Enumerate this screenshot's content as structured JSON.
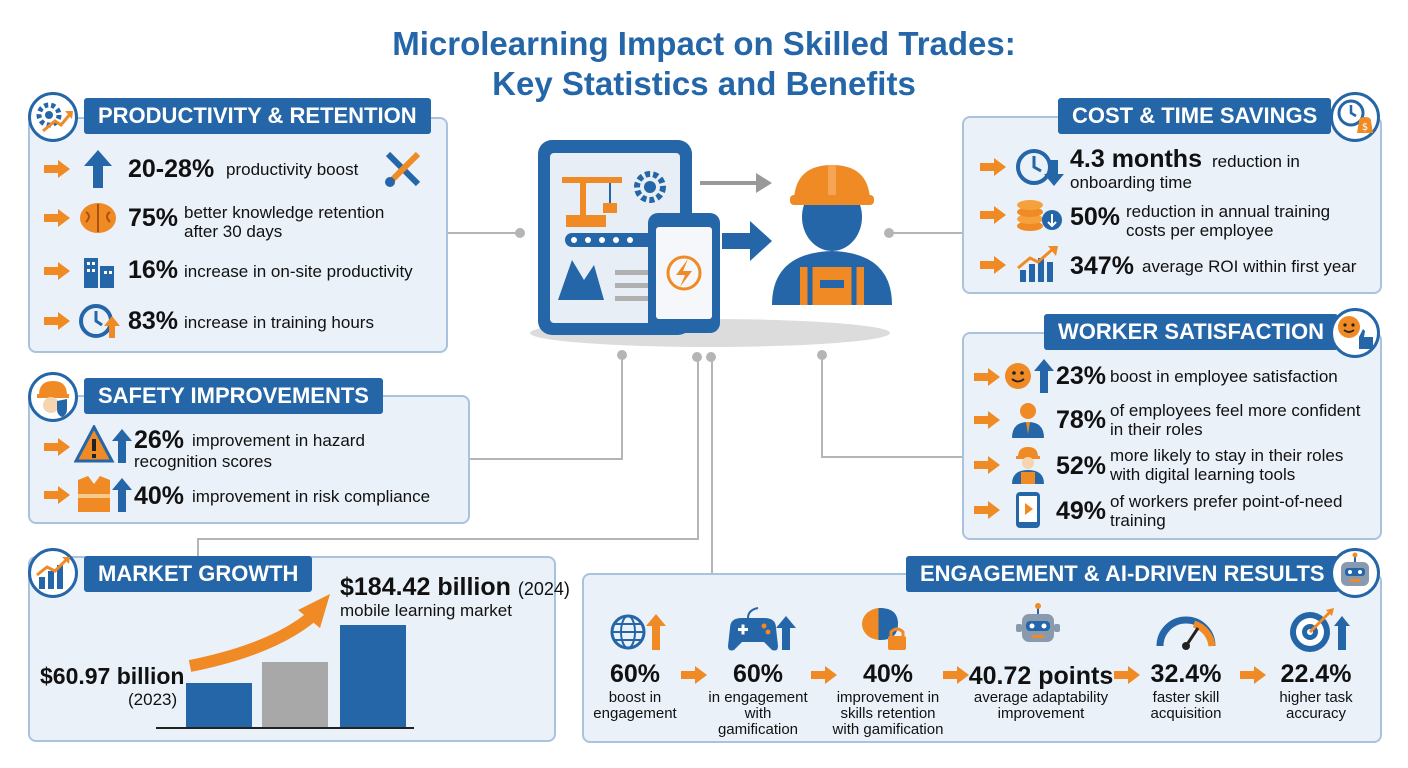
{
  "title_line1": "Microlearning Impact on Skilled Trades:",
  "title_line2": "Key Statistics and Benefits",
  "productivity": {
    "header": "PRODUCTIVITY & RETENTION",
    "items": [
      {
        "value": "20-28%",
        "text": "productivity boost",
        "icon": "up-arrow-icon"
      },
      {
        "value": "75%",
        "text": "better knowledge retention",
        "text2": "after 30 days",
        "icon": "brain-icon"
      },
      {
        "value": "16%",
        "text": "increase in on-site productivity",
        "icon": "building-icon"
      },
      {
        "value": "83%",
        "text": "increase in training hours",
        "icon": "clock-up-icon"
      }
    ]
  },
  "safety": {
    "header": "SAFETY IMPROVEMENTS",
    "items": [
      {
        "value": "26%",
        "text": "improvement in hazard",
        "text2": "recognition scores",
        "icon": "warning-icon"
      },
      {
        "value": "40%",
        "text": "improvement in risk compliance",
        "icon": "vest-icon"
      }
    ]
  },
  "market": {
    "header": "MARKET GROWTH",
    "value2024": "$184.42 billion",
    "year2024": "(2024)",
    "label2024": "mobile learning market",
    "value2023": "$60.97 billion",
    "year2023": "(2023)"
  },
  "cost": {
    "header": "COST & TIME SAVINGS",
    "items": [
      {
        "value": "4.3 months",
        "text": "reduction in",
        "text2": "onboarding time",
        "icon": "clock-down-icon"
      },
      {
        "value": "50%",
        "text": "reduction in annual training",
        "text2": "costs per employee",
        "icon": "coins-icon"
      },
      {
        "value": "347%",
        "text": "average ROI within first year",
        "icon": "growth-chart-icon"
      }
    ]
  },
  "satisfaction": {
    "header": "WORKER SATISFACTION",
    "items": [
      {
        "value": "23%",
        "text": "boost in employee satisfaction",
        "icon": "smiley-up-icon"
      },
      {
        "value": "78%",
        "text": "of employees feel more confident",
        "text2": "in their roles",
        "icon": "employee-icon"
      },
      {
        "value": "52%",
        "text": "more likely to stay in their roles",
        "text2": "with digital learning tools",
        "icon": "worker-icon"
      },
      {
        "value": "49%",
        "text": "of workers prefer point-of-need",
        "text2": "training",
        "icon": "phone-play-icon"
      }
    ]
  },
  "engagement": {
    "header": "ENGAGEMENT & AI-DRIVEN RESULTS",
    "items": [
      {
        "value": "60%",
        "lines": [
          "boost in",
          "engagement"
        ],
        "icon": "globe-up-icon"
      },
      {
        "value": "60%",
        "lines": [
          "in engagement",
          "with",
          "gamification"
        ],
        "icon": "gamepad-icon"
      },
      {
        "value": "40%",
        "lines": [
          "improvement in",
          "skills retention",
          "with gamification"
        ],
        "icon": "brain-lock-icon"
      },
      {
        "value": "40.72 points",
        "lines": [
          "average adaptability",
          "improvement"
        ],
        "icon": "robot-icon"
      },
      {
        "value": "32.4%",
        "lines": [
          "faster skill",
          "acquisition"
        ],
        "icon": "gauge-icon"
      },
      {
        "value": "22.4%",
        "lines": [
          "higher task",
          "accuracy"
        ],
        "icon": "target-icon"
      }
    ]
  },
  "colors": {
    "blue": "#2466a8",
    "orange": "#f08a24",
    "panel": "#eaf1f9",
    "gray": "#b5b5b5"
  }
}
